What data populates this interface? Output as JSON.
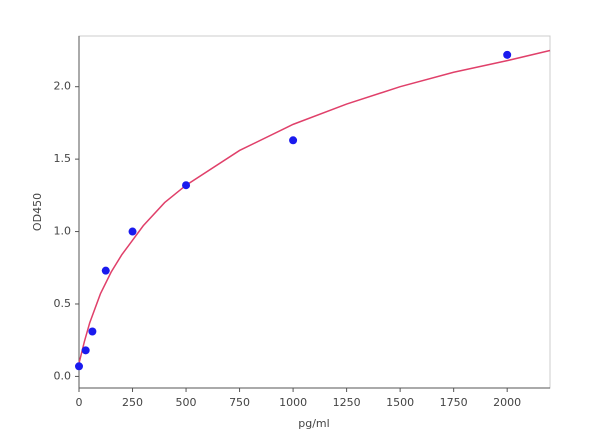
{
  "chart_data": {
    "type": "scatter",
    "x_label": "pg/ml",
    "y_label": "OD450",
    "xlim": [
      0,
      2200
    ],
    "ylim": [
      -0.08,
      2.35
    ],
    "xticks": [
      0,
      250,
      500,
      750,
      1000,
      1250,
      1500,
      1750,
      2000
    ],
    "yticks": [
      {
        "value": 0,
        "label": "0.0"
      },
      0.5,
      {
        "value": 1,
        "label": "1.0"
      },
      1.5,
      {
        "value": 2,
        "label": "2.0"
      }
    ],
    "series": [
      {
        "style": "line",
        "color": "#e0406a",
        "x": [
          0,
          25,
          50,
          100,
          150,
          200,
          300,
          400,
          500,
          750,
          1000,
          1250,
          1500,
          1750,
          2000,
          2200
        ],
        "values": [
          0.09,
          0.24,
          0.37,
          0.57,
          0.72,
          0.84,
          1.04,
          1.2,
          1.32,
          1.56,
          1.74,
          1.88,
          2.0,
          2.1,
          2.18,
          2.25
        ]
      },
      {
        "style": "markers",
        "color": "#1a1aee",
        "x": [
          0,
          31.25,
          62.5,
          125,
          250,
          500,
          1000,
          2000
        ],
        "values": [
          0.07,
          0.18,
          0.31,
          0.73,
          1.0,
          1.32,
          1.63,
          2.22
        ]
      }
    ]
  }
}
